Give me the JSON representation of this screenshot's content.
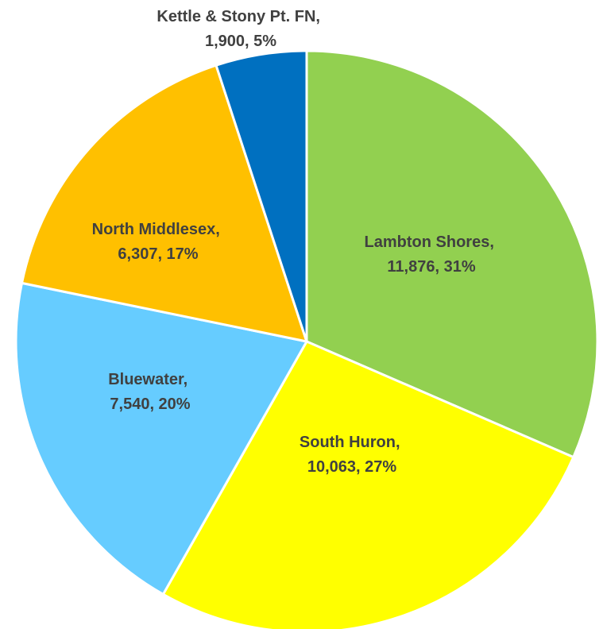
{
  "chart_data": {
    "type": "pie",
    "title": "",
    "start_angle_deg": 0,
    "direction": "clockwise",
    "slices": [
      {
        "name": "Lambton Shores",
        "value": 11876,
        "percent_label": "31%",
        "value_label": "11,876",
        "color": "#92D050"
      },
      {
        "name": "South Huron",
        "value": 10063,
        "percent_label": "27%",
        "value_label": "10,063",
        "color": "#FFFF00"
      },
      {
        "name": "Bluewater",
        "value": 7540,
        "percent_label": "20%",
        "value_label": "7,540",
        "color": "#66CCFF"
      },
      {
        "name": "North Middlesex",
        "value": 6307,
        "percent_label": "17%",
        "value_label": "6,307",
        "color": "#FFC000"
      },
      {
        "name": "Kettle & Stony Pt. FN",
        "value": 1900,
        "percent_label": "5%",
        "value_label": "1,900",
        "color": "#0070C0"
      }
    ],
    "labels": [
      {
        "line1": "Lambton Shores,",
        "line2": "11,876, 31%"
      },
      {
        "line1": "South Huron,",
        "line2": "10,063, 27%"
      },
      {
        "line1": "Bluewater,",
        "line2": "7,540, 20%"
      },
      {
        "line1": "North Middlesex,",
        "line2": "6,307, 17%"
      },
      {
        "line1": "Kettle & Stony Pt. FN,",
        "line2": "1,900, 5%"
      }
    ]
  }
}
